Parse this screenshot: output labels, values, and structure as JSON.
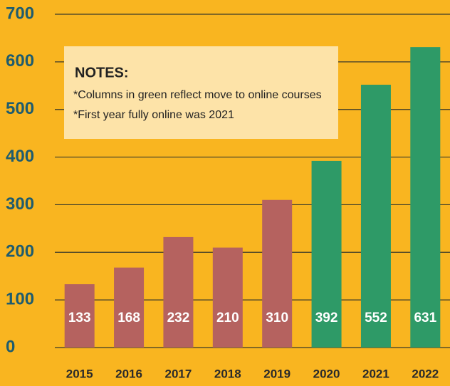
{
  "chart_data": {
    "type": "bar",
    "categories": [
      "2015",
      "2016",
      "2017",
      "2018",
      "2019",
      "2020",
      "2021",
      "2022"
    ],
    "values": [
      133,
      168,
      232,
      210,
      310,
      392,
      552,
      631
    ],
    "colors": [
      "#b5625f",
      "#b5625f",
      "#b5625f",
      "#b5625f",
      "#b5625f",
      "#2e9a67",
      "#2e9a67",
      "#2e9a67"
    ],
    "ylim": [
      0,
      700
    ],
    "yticks": [
      0,
      100,
      200,
      300,
      400,
      500,
      600,
      700
    ],
    "grid": true,
    "annotation": {
      "title": "NOTES:",
      "lines": [
        "*Columns in green reflect move to online courses",
        "*First year fully online was 2021"
      ]
    }
  }
}
